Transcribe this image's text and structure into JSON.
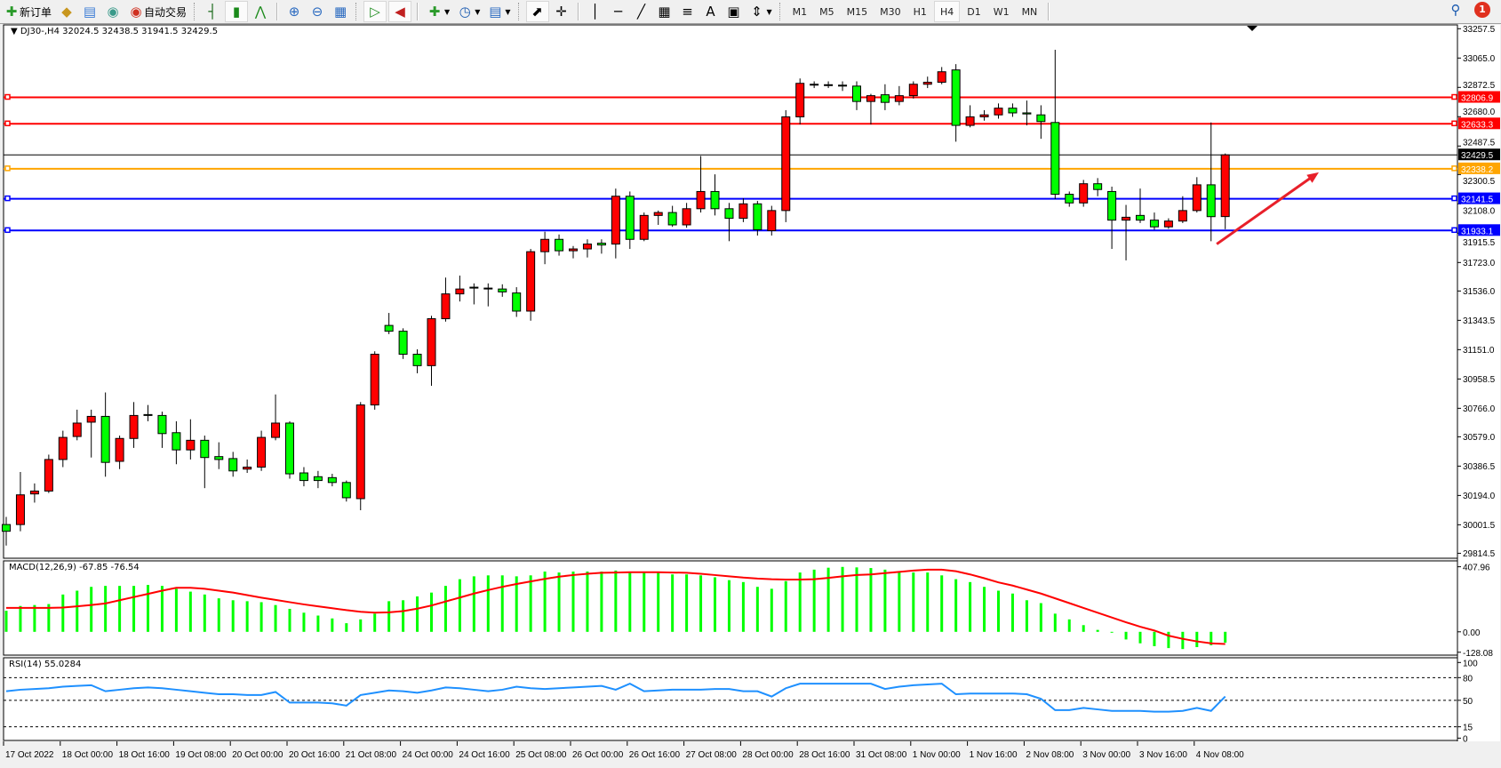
{
  "toolbar": {
    "new_order_label": "新订单",
    "auto_trading_label": "自动交易",
    "icons": [
      "new-order-icon",
      "market-watch-icon",
      "navigator-icon",
      "signals-icon",
      "auto-trading-icon",
      "bar-chart-icon",
      "candlestick-icon",
      "line-chart-icon",
      "zoom-in-icon",
      "zoom-out-icon",
      "tile-windows-icon",
      "auto-scroll-icon",
      "chart-shift-icon",
      "indicators-icon",
      "periods-icon",
      "templates-icon",
      "cursor-icon",
      "crosshair-icon",
      "vertical-line-icon",
      "horizontal-line-icon",
      "trendline-icon",
      "equidistant-channel-icon",
      "fibonacci-icon",
      "text-icon",
      "text-label-icon",
      "arrows-icon",
      "search-icon",
      "notifications-icon"
    ],
    "timeframes": [
      "M1",
      "M5",
      "M15",
      "M30",
      "H1",
      "H4",
      "D1",
      "W1",
      "MN"
    ],
    "active_timeframe": "H4",
    "notification_count": "1"
  },
  "chart_title": "DJ30-,H4  32024.5 32438.5 31941.5 32429.5",
  "macd_label": "MACD(12,26,9) -67.85 -76.54",
  "rsi_label": "RSI(14) 55.0284",
  "colors": {
    "up": "#ff0000",
    "down": "#00ff00",
    "macd_hist": "#00ff00",
    "macd_signal": "#ff0000",
    "rsi": "#1e90ff",
    "level_red": "#ff0000",
    "level_orange": "#ffa500",
    "level_blue": "#0000ff",
    "current": "#000000",
    "arrow": "#e8202a"
  },
  "chart_data": {
    "type": "candlestick",
    "symbol": "DJ30-",
    "timeframe": "H4",
    "ylim": [
      29814.5,
      33257.5
    ],
    "price_ticks": [
      "33257.5",
      "33065.0",
      "32872.5",
      "32680.0",
      "32487.5",
      "32300.5",
      "32108.0",
      "31915.5",
      "31723.0",
      "31536.0",
      "31343.5",
      "31151.0",
      "30958.5",
      "30766.0",
      "30579.0",
      "30386.5",
      "30194.0",
      "30001.5",
      "29814.5"
    ],
    "time_labels": [
      {
        "bar": 0,
        "label": "17 Oct 2022"
      },
      {
        "bar": 4,
        "label": "18 Oct 00:00"
      },
      {
        "bar": 8,
        "label": "18 Oct 16:00"
      },
      {
        "bar": 12,
        "label": "19 Oct 08:00"
      },
      {
        "bar": 16,
        "label": "20 Oct 00:00"
      },
      {
        "bar": 20,
        "label": "20 Oct 16:00"
      },
      {
        "bar": 24,
        "label": "21 Oct 08:00"
      },
      {
        "bar": 28,
        "label": "24 Oct 00:00"
      },
      {
        "bar": 32,
        "label": "24 Oct 16:00"
      },
      {
        "bar": 36,
        "label": "25 Oct 08:00"
      },
      {
        "bar": 40,
        "label": "26 Oct 00:00"
      },
      {
        "bar": 44,
        "label": "26 Oct 16:00"
      },
      {
        "bar": 48,
        "label": "27 Oct 08:00"
      },
      {
        "bar": 52,
        "label": "28 Oct 00:00"
      },
      {
        "bar": 56,
        "label": "28 Oct 16:00"
      },
      {
        "bar": 60,
        "label": "31 Oct 08:00"
      },
      {
        "bar": 64,
        "label": "1 Nov 00:00"
      },
      {
        "bar": 68,
        "label": "1 Nov 16:00"
      },
      {
        "bar": 72,
        "label": "2 Nov 08:00"
      },
      {
        "bar": 76,
        "label": "3 Nov 00:00"
      },
      {
        "bar": 80,
        "label": "3 Nov 16:00"
      },
      {
        "bar": 84,
        "label": "4 Nov 08:00"
      }
    ],
    "ohlc": [
      [
        30003,
        30053,
        29865,
        29959
      ],
      [
        30003,
        30348,
        29959,
        30198
      ],
      [
        30204,
        30273,
        30147,
        30223
      ],
      [
        30223,
        30462,
        30210,
        30430
      ],
      [
        30430,
        30619,
        30380,
        30575
      ],
      [
        30581,
        30757,
        30556,
        30669
      ],
      [
        30675,
        30757,
        30443,
        30713
      ],
      [
        30713,
        30870,
        30317,
        30411
      ],
      [
        30418,
        30587,
        30367,
        30568
      ],
      [
        30568,
        30807,
        30506,
        30719
      ],
      [
        30725,
        30788,
        30681,
        30719
      ],
      [
        30719,
        30744,
        30506,
        30600
      ],
      [
        30606,
        30681,
        30399,
        30493
      ],
      [
        30493,
        30694,
        30430,
        30556
      ],
      [
        30556,
        30587,
        30242,
        30443
      ],
      [
        30449,
        30543,
        30367,
        30430
      ],
      [
        30436,
        30480,
        30317,
        30355
      ],
      [
        30367,
        30430,
        30342,
        30380
      ],
      [
        30380,
        30619,
        30355,
        30575
      ],
      [
        30575,
        30857,
        30556,
        30669
      ],
      [
        30669,
        30681,
        30304,
        30336
      ],
      [
        30342,
        30380,
        30254,
        30292
      ],
      [
        30317,
        30355,
        30242,
        30292
      ],
      [
        30311,
        30336,
        30254,
        30279
      ],
      [
        30279,
        30292,
        30154,
        30179
      ],
      [
        30173,
        30807,
        30097,
        30788
      ],
      [
        30788,
        31140,
        30757,
        31121
      ],
      [
        31310,
        31392,
        31253,
        31272
      ],
      [
        31272,
        31291,
        31090,
        31121
      ],
      [
        31121,
        31153,
        30996,
        31046
      ],
      [
        31046,
        31373,
        30914,
        31354
      ],
      [
        31354,
        31624,
        31335,
        31517
      ],
      [
        31517,
        31637,
        31467,
        31549
      ],
      [
        31561,
        31586,
        31448,
        31555
      ],
      [
        31555,
        31586,
        31435,
        31552
      ],
      [
        31549,
        31580,
        31498,
        31530
      ],
      [
        31523,
        31561,
        31366,
        31404
      ],
      [
        31404,
        31812,
        31341,
        31794
      ],
      [
        31794,
        31925,
        31712,
        31875
      ],
      [
        31875,
        31907,
        31768,
        31800
      ],
      [
        31800,
        31831,
        31750,
        31812
      ],
      [
        31812,
        31875,
        31756,
        31844
      ],
      [
        31850,
        31875,
        31781,
        31838
      ],
      [
        31844,
        32208,
        31750,
        32158
      ],
      [
        32158,
        32189,
        31812,
        31875
      ],
      [
        31875,
        32051,
        31863,
        32032
      ],
      [
        32032,
        32064,
        31970,
        32051
      ],
      [
        32051,
        32095,
        31957,
        31970
      ],
      [
        31970,
        32114,
        31951,
        32076
      ],
      [
        32076,
        32422,
        32051,
        32189
      ],
      [
        32189,
        32302,
        32032,
        32076
      ],
      [
        32076,
        32114,
        31863,
        32013
      ],
      [
        32013,
        32145,
        31988,
        32108
      ],
      [
        32108,
        32127,
        31900,
        31938
      ],
      [
        31932,
        32095,
        31900,
        32064
      ],
      [
        32064,
        32723,
        31988,
        32679
      ],
      [
        32679,
        32931,
        32629,
        32899
      ],
      [
        32893,
        32912,
        32868,
        32890
      ],
      [
        32890,
        32912,
        32868,
        32887
      ],
      [
        32887,
        32912,
        32849,
        32881
      ],
      [
        32881,
        32912,
        32723,
        32780
      ],
      [
        32780,
        32830,
        32629,
        32818
      ],
      [
        32824,
        32893,
        32723,
        32774
      ],
      [
        32780,
        32881,
        32755,
        32818
      ],
      [
        32818,
        32912,
        32799,
        32893
      ],
      [
        32893,
        32943,
        32868,
        32906
      ],
      [
        32906,
        33006,
        32893,
        32975
      ],
      [
        32987,
        33025,
        32516,
        32623
      ],
      [
        32623,
        32755,
        32610,
        32679
      ],
      [
        32679,
        32723,
        32654,
        32692
      ],
      [
        32692,
        32767,
        32667,
        32736
      ],
      [
        32736,
        32767,
        32679,
        32705
      ],
      [
        32705,
        32786,
        32623,
        32698
      ],
      [
        32692,
        32755,
        32535,
        32648
      ],
      [
        32642,
        33119,
        32139,
        32171
      ],
      [
        32171,
        32189,
        32089,
        32114
      ],
      [
        32114,
        32265,
        32089,
        32240
      ],
      [
        32240,
        32277,
        32158,
        32202
      ],
      [
        32189,
        32221,
        31812,
        32001
      ],
      [
        32001,
        32101,
        31737,
        32020
      ],
      [
        32032,
        32208,
        31982,
        32001
      ],
      [
        32001,
        32051,
        31938,
        31957
      ],
      [
        31957,
        32013,
        31944,
        31995
      ],
      [
        31995,
        32158,
        31982,
        32064
      ],
      [
        32064,
        32283,
        32051,
        32233
      ],
      [
        32233,
        32642,
        31863,
        32024
      ],
      [
        32024.5,
        32438.5,
        31941.5,
        32429.5
      ]
    ],
    "levels": [
      {
        "price": 32806.9,
        "label": "32806.9",
        "color": "#ff0000"
      },
      {
        "price": 32633.3,
        "label": "32633.3",
        "color": "#ff0000"
      },
      {
        "price": 32338.2,
        "label": "32338.2",
        "color": "#ffa500"
      },
      {
        "price": 32141.5,
        "label": "32141.5",
        "color": "#0000ff"
      },
      {
        "price": 31933.1,
        "label": "31933.1",
        "color": "#0000ff"
      }
    ],
    "current_price": {
      "price": 32429.5,
      "label": "32429.5"
    },
    "arrow": {
      "from": {
        "bar": 85.4,
        "price": 31844
      },
      "to": {
        "bar": 92.6,
        "price": 32315
      }
    },
    "macd": {
      "params": "12,26,9",
      "ylim": [
        -128.08,
        407.96
      ],
      "ticks": [
        "407.96",
        "0.00",
        "-128.08"
      ],
      "histogram": [
        132,
        162,
        168,
        174,
        234,
        258,
        282,
        288,
        288,
        288,
        294,
        288,
        270,
        252,
        234,
        210,
        198,
        192,
        186,
        168,
        144,
        120,
        102,
        84,
        54,
        78,
        114,
        192,
        198,
        222,
        246,
        288,
        330,
        348,
        354,
        354,
        348,
        354,
        378,
        372,
        378,
        378,
        378,
        384,
        378,
        378,
        378,
        360,
        360,
        354,
        342,
        324,
        312,
        282,
        270,
        318,
        372,
        390,
        402,
        407,
        404,
        400,
        390,
        378,
        372,
        372,
        354,
        330,
        312,
        282,
        258,
        240,
        198,
        180,
        114,
        78,
        42,
        12,
        -4,
        -48,
        -72,
        -90,
        -102,
        -108,
        -96,
        -84,
        -67.85
      ],
      "signal": [
        150,
        150,
        150,
        150,
        152,
        160,
        168,
        178,
        198,
        218,
        238,
        258,
        276,
        276,
        270,
        258,
        246,
        230,
        214,
        200,
        186,
        172,
        160,
        148,
        136,
        126,
        120,
        122,
        130,
        145,
        165,
        190,
        215,
        240,
        262,
        282,
        300,
        316,
        332,
        346,
        356,
        364,
        370,
        372,
        374,
        374,
        374,
        372,
        370,
        364,
        356,
        348,
        340,
        334,
        330,
        328,
        328,
        330,
        338,
        348,
        356,
        360,
        368,
        376,
        384,
        390,
        390,
        380,
        360,
        336,
        310,
        290,
        265,
        240,
        210,
        180,
        150,
        120,
        90,
        60,
        32,
        8,
        -24,
        -44,
        -60,
        -72,
        -76.54
      ]
    },
    "rsi": {
      "period": 14,
      "ylim": [
        0,
        100
      ],
      "ticks": [
        "100",
        "80",
        "50",
        "15",
        "0"
      ],
      "levels": [
        80,
        50,
        15
      ],
      "values": [
        62,
        64,
        65,
        66,
        68,
        69,
        70,
        62,
        64,
        66,
        67,
        66,
        64,
        62,
        60,
        58,
        58,
        57,
        57,
        61,
        47,
        47,
        47,
        46,
        43,
        57,
        60,
        63,
        62,
        60,
        63,
        67,
        66,
        64,
        62,
        64,
        68,
        66,
        65,
        66,
        67,
        68,
        69,
        64,
        72,
        62,
        63,
        64,
        64,
        64,
        65,
        65,
        62,
        62,
        55,
        66,
        72,
        72,
        72,
        72,
        72,
        72,
        65,
        68,
        70,
        71,
        72,
        58,
        59,
        59,
        59,
        59,
        58,
        52,
        37,
        37,
        40,
        38,
        36,
        36,
        36,
        35,
        35,
        36,
        40,
        36,
        55.0284
      ]
    }
  }
}
